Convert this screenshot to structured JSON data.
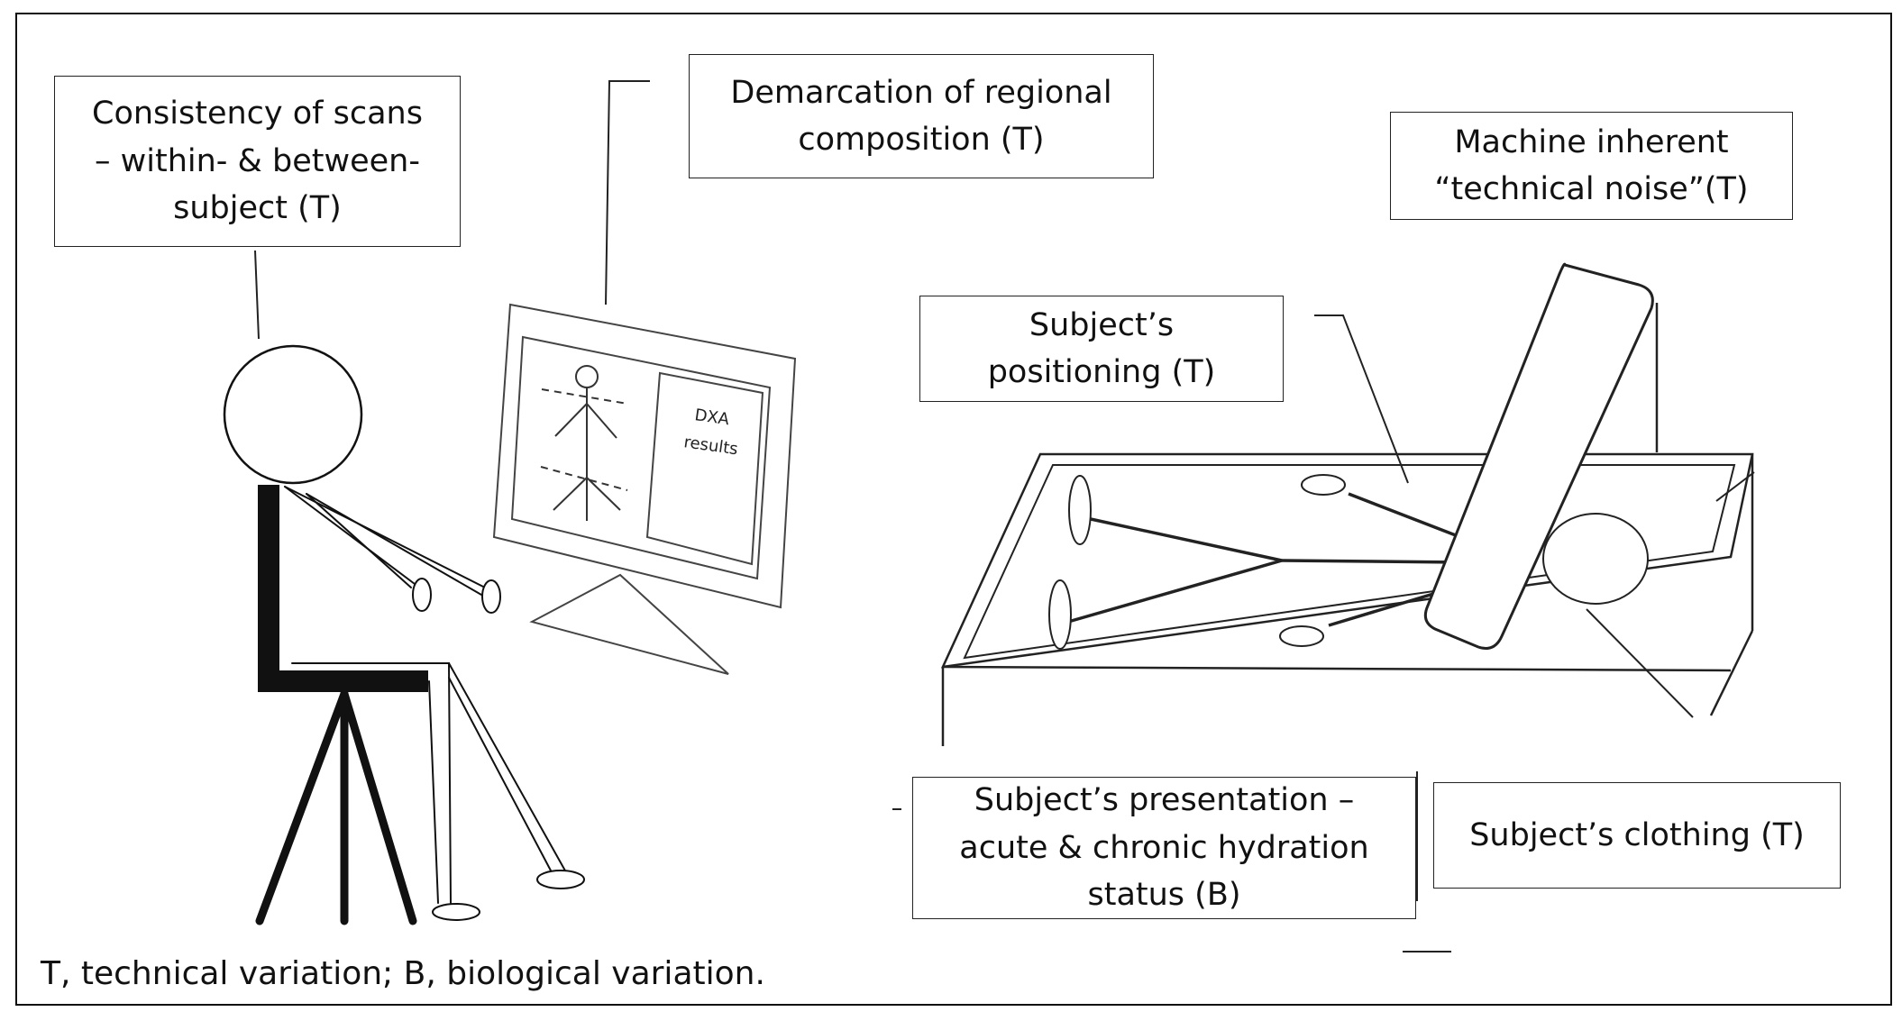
{
  "labels": {
    "consistency": "Consistency of scans\n– within- & between-\nsubject  (T)",
    "demarcation": "Demarcation of regional\ncomposition (T)",
    "machine_noise": "Machine inherent\n“technical noise”(T)",
    "positioning": "Subject’s\npositioning (T)",
    "presentation": "Subject’s presentation –\nacute & chronic hydration\nstatus (B)",
    "clothing": "Subject’s clothing (T)"
  },
  "monitor": {
    "results_line1": "DXA",
    "results_line2": "results"
  },
  "legend": "T, technical variation; B, biological variation."
}
